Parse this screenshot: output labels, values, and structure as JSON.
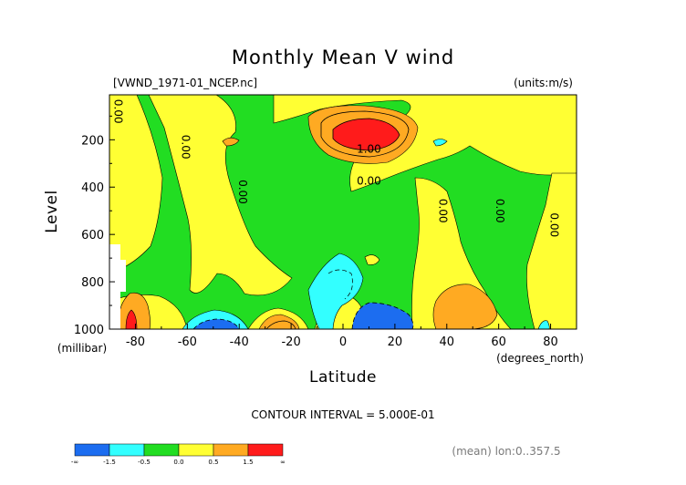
{
  "chart_data": {
    "type": "heatmap",
    "title": "Monthly Mean V wind",
    "dataset_label": "[VWND_1971-01_NCEP.nc]",
    "units_label": "(units:m/s)",
    "xlabel": "Latitude",
    "x_units": "(degrees_north)",
    "ylabel": "Level",
    "y_units": "(millibar)",
    "xlim": [
      -90,
      90
    ],
    "ylim": [
      1000,
      10
    ],
    "x_ticks": [
      -80,
      -60,
      -40,
      -20,
      0,
      20,
      40,
      60,
      80
    ],
    "y_ticks": [
      200,
      400,
      600,
      800,
      1000
    ],
    "contour_interval_text": "CONTOUR INTERVAL = 5.000E-01",
    "averaging_text": "(mean) lon:0..357.5",
    "contour_labels": [
      {
        "text": "0.00",
        "x": -88,
        "y": 80
      },
      {
        "text": "0.00",
        "x": -62,
        "y": 230
      },
      {
        "text": "0.00",
        "x": -40,
        "y": 420
      },
      {
        "text": "1.00",
        "x": 10,
        "y": 255
      },
      {
        "text": "0.00",
        "x": 10,
        "y": 390
      },
      {
        "text": "0.00",
        "x": 37,
        "y": 500
      },
      {
        "text": "0.00",
        "x": 59,
        "y": 500
      },
      {
        "text": "0.00",
        "x": 80,
        "y": 560
      }
    ],
    "colorbar": {
      "labels": [
        "-∞",
        "-1.5",
        "-0.5",
        "0.0",
        "0.5",
        "1.5",
        "∞"
      ],
      "colors": [
        "#1c6df0",
        "#33ffff",
        "#22dd22",
        "#ffff33",
        "#ffaa22",
        "#ff1b1b"
      ]
    },
    "levels": [
      -1.5,
      -0.5,
      0.0,
      0.5,
      1.5
    ]
  }
}
